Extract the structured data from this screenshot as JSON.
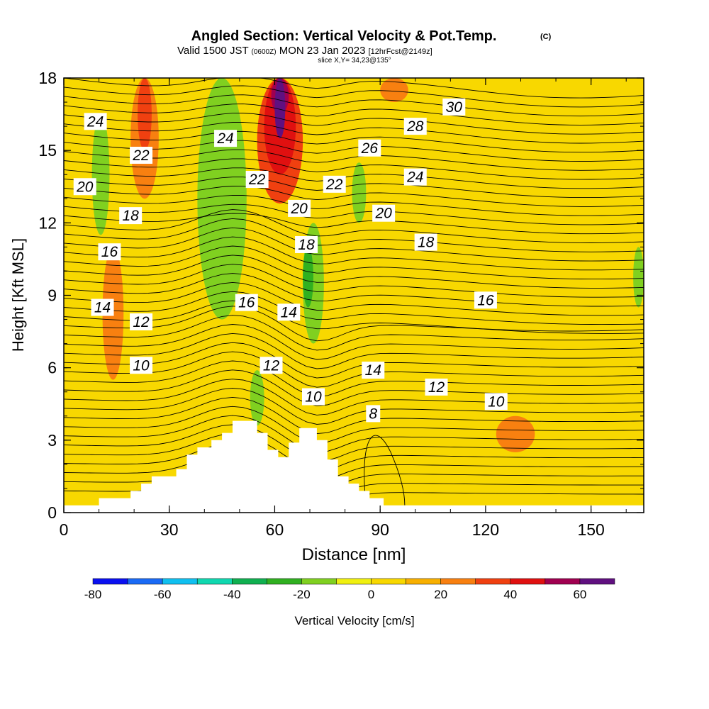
{
  "header": {
    "title": "Angled Section: Vertical Velocity & Pot.Temp.",
    "title_mark": "(C)",
    "line2_a": "Valid 1500 JST",
    "line2_b": "(0600Z)",
    "line2_c": "MON 23 Jan 2023",
    "line2_d": "[12hrFcst@2149z]",
    "line3": "slice X,Y= 34,23@135°"
  },
  "colors": {
    "colorbar": [
      "#0a10f0",
      "#1a6af5",
      "#10c0f0",
      "#10d8b0",
      "#10b050",
      "#30b020",
      "#80d020",
      "#f0f010",
      "#f8d800",
      "#f8b000",
      "#f88010",
      "#f04010",
      "#e01010",
      "#a00050",
      "#601080"
    ],
    "terrain": "#ffffff",
    "contour": "#000000"
  },
  "chart_data": {
    "type": "heatmap",
    "xlabel": "Distance [nm]",
    "ylabel": "Height [Kft MSL]",
    "xlim": [
      0,
      165
    ],
    "ylim": [
      0,
      18
    ],
    "x_ticks": [
      "0",
      "30",
      "60",
      "90",
      "120",
      "150"
    ],
    "y_ticks": [
      "0",
      "3",
      "6",
      "9",
      "12",
      "15",
      "18"
    ],
    "colorbar": {
      "label": "Vertical Velocity [cm/s]",
      "bounds": [
        -80,
        -70,
        -60,
        -50,
        -40,
        -30,
        -20,
        -10,
        0,
        10,
        20,
        30,
        40,
        50,
        60,
        70
      ],
      "tick_labels": [
        "-80",
        "-60",
        "-40",
        "-20",
        "0",
        "20",
        "40",
        "60"
      ]
    },
    "terrain_profile": [
      [
        0,
        0.3
      ],
      [
        10,
        0.3
      ],
      [
        10,
        0.6
      ],
      [
        19,
        0.6
      ],
      [
        19,
        0.9
      ],
      [
        22,
        0.9
      ],
      [
        22,
        1.2
      ],
      [
        25,
        1.2
      ],
      [
        25,
        1.5
      ],
      [
        32,
        1.5
      ],
      [
        32,
        1.8
      ],
      [
        35,
        1.8
      ],
      [
        35,
        2.4
      ],
      [
        38,
        2.4
      ],
      [
        38,
        2.7
      ],
      [
        42,
        2.7
      ],
      [
        42,
        3.0
      ],
      [
        45,
        3.0
      ],
      [
        45,
        3.3
      ],
      [
        48,
        3.3
      ],
      [
        48,
        3.8
      ],
      [
        55,
        3.8
      ],
      [
        55,
        3.3
      ],
      [
        58,
        3.3
      ],
      [
        58,
        2.6
      ],
      [
        61,
        2.6
      ],
      [
        61,
        2.3
      ],
      [
        64,
        2.3
      ],
      [
        64,
        2.9
      ],
      [
        67,
        2.9
      ],
      [
        67,
        3.5
      ],
      [
        72,
        3.5
      ],
      [
        72,
        3.0
      ],
      [
        75,
        3.0
      ],
      [
        75,
        2.2
      ],
      [
        78,
        2.2
      ],
      [
        78,
        1.5
      ],
      [
        81,
        1.5
      ],
      [
        81,
        1.2
      ],
      [
        84,
        1.2
      ],
      [
        84,
        0.9
      ],
      [
        87,
        0.9
      ],
      [
        87,
        0.6
      ],
      [
        91,
        0.6
      ],
      [
        91,
        0.3
      ],
      [
        165,
        0.3
      ]
    ],
    "velocity_cells": [
      {
        "band": "-30..-20",
        "x": [
          41,
          48
        ],
        "y": [
          11,
          18
        ]
      },
      {
        "band": "-20..-10",
        "x": [
          38,
          52
        ],
        "y": [
          8,
          18
        ]
      },
      {
        "band": "-20..-10",
        "x": [
          68,
          74
        ],
        "y": [
          7,
          12
        ]
      },
      {
        "band": "-20..-10",
        "x": [
          8,
          13
        ],
        "y": [
          11.5,
          16.5
        ]
      },
      {
        "band": "-20..-10",
        "x": [
          53,
          57
        ],
        "y": [
          3.6,
          5.9
        ]
      },
      {
        "band": "-20..-10",
        "x": [
          82,
          86
        ],
        "y": [
          12,
          14.5
        ]
      },
      {
        "band": "-20..-10",
        "x": [
          162,
          165
        ],
        "y": [
          8.5,
          11
        ]
      },
      {
        "band": "-30..-20",
        "x": [
          68,
          71
        ],
        "y": [
          8.5,
          11
        ]
      },
      {
        "band": "20..30",
        "x": [
          19,
          27
        ],
        "y": [
          13,
          18
        ]
      },
      {
        "band": "30..40",
        "x": [
          21,
          25
        ],
        "y": [
          15,
          18
        ]
      },
      {
        "band": "20..30",
        "x": [
          11,
          17
        ],
        "y": [
          5.5,
          11
        ]
      },
      {
        "band": "20..30",
        "x": [
          123,
          134
        ],
        "y": [
          2.5,
          4
        ]
      },
      {
        "band": "20..30",
        "x": [
          90,
          98
        ],
        "y": [
          17,
          18
        ]
      },
      {
        "band": "30..40",
        "x": [
          55,
          68
        ],
        "y": [
          12.8,
          18
        ]
      },
      {
        "band": "40..50",
        "x": [
          57,
          66
        ],
        "y": [
          14,
          18
        ]
      },
      {
        "band": "50..60",
        "x": [
          59,
          64
        ],
        "y": [
          16.5,
          18
        ]
      },
      {
        "band": "60..70",
        "x": [
          60,
          63
        ],
        "y": [
          15.5,
          18
        ]
      }
    ],
    "pot_temp_contour_labels": [
      {
        "value": "30",
        "x": 111,
        "y": 16.8
      },
      {
        "value": "28",
        "x": 100,
        "y": 16.0
      },
      {
        "value": "26",
        "x": 87,
        "y": 15.1
      },
      {
        "value": "24",
        "x": 9,
        "y": 16.2
      },
      {
        "value": "24",
        "x": 46,
        "y": 15.5
      },
      {
        "value": "24",
        "x": 100,
        "y": 13.9
      },
      {
        "value": "22",
        "x": 22,
        "y": 14.8
      },
      {
        "value": "22",
        "x": 55,
        "y": 13.8
      },
      {
        "value": "22",
        "x": 77,
        "y": 13.6
      },
      {
        "value": "20",
        "x": 6,
        "y": 13.5
      },
      {
        "value": "20",
        "x": 67,
        "y": 12.6
      },
      {
        "value": "20",
        "x": 91,
        "y": 12.4
      },
      {
        "value": "18",
        "x": 19,
        "y": 12.3
      },
      {
        "value": "18",
        "x": 69,
        "y": 11.1
      },
      {
        "value": "18",
        "x": 103,
        "y": 11.2
      },
      {
        "value": "16",
        "x": 13,
        "y": 10.8
      },
      {
        "value": "16",
        "x": 52,
        "y": 8.7
      },
      {
        "value": "16",
        "x": 120,
        "y": 8.8
      },
      {
        "value": "14",
        "x": 11,
        "y": 8.5
      },
      {
        "value": "14",
        "x": 64,
        "y": 8.3
      },
      {
        "value": "14",
        "x": 88,
        "y": 5.9
      },
      {
        "value": "12",
        "x": 22,
        "y": 7.9
      },
      {
        "value": "12",
        "x": 59,
        "y": 6.1
      },
      {
        "value": "12",
        "x": 106,
        "y": 5.2
      },
      {
        "value": "10",
        "x": 22,
        "y": 6.1
      },
      {
        "value": "10",
        "x": 71,
        "y": 4.8
      },
      {
        "value": "10",
        "x": 123,
        "y": 4.6
      },
      {
        "value": "8",
        "x": 88,
        "y": 4.1
      }
    ]
  }
}
